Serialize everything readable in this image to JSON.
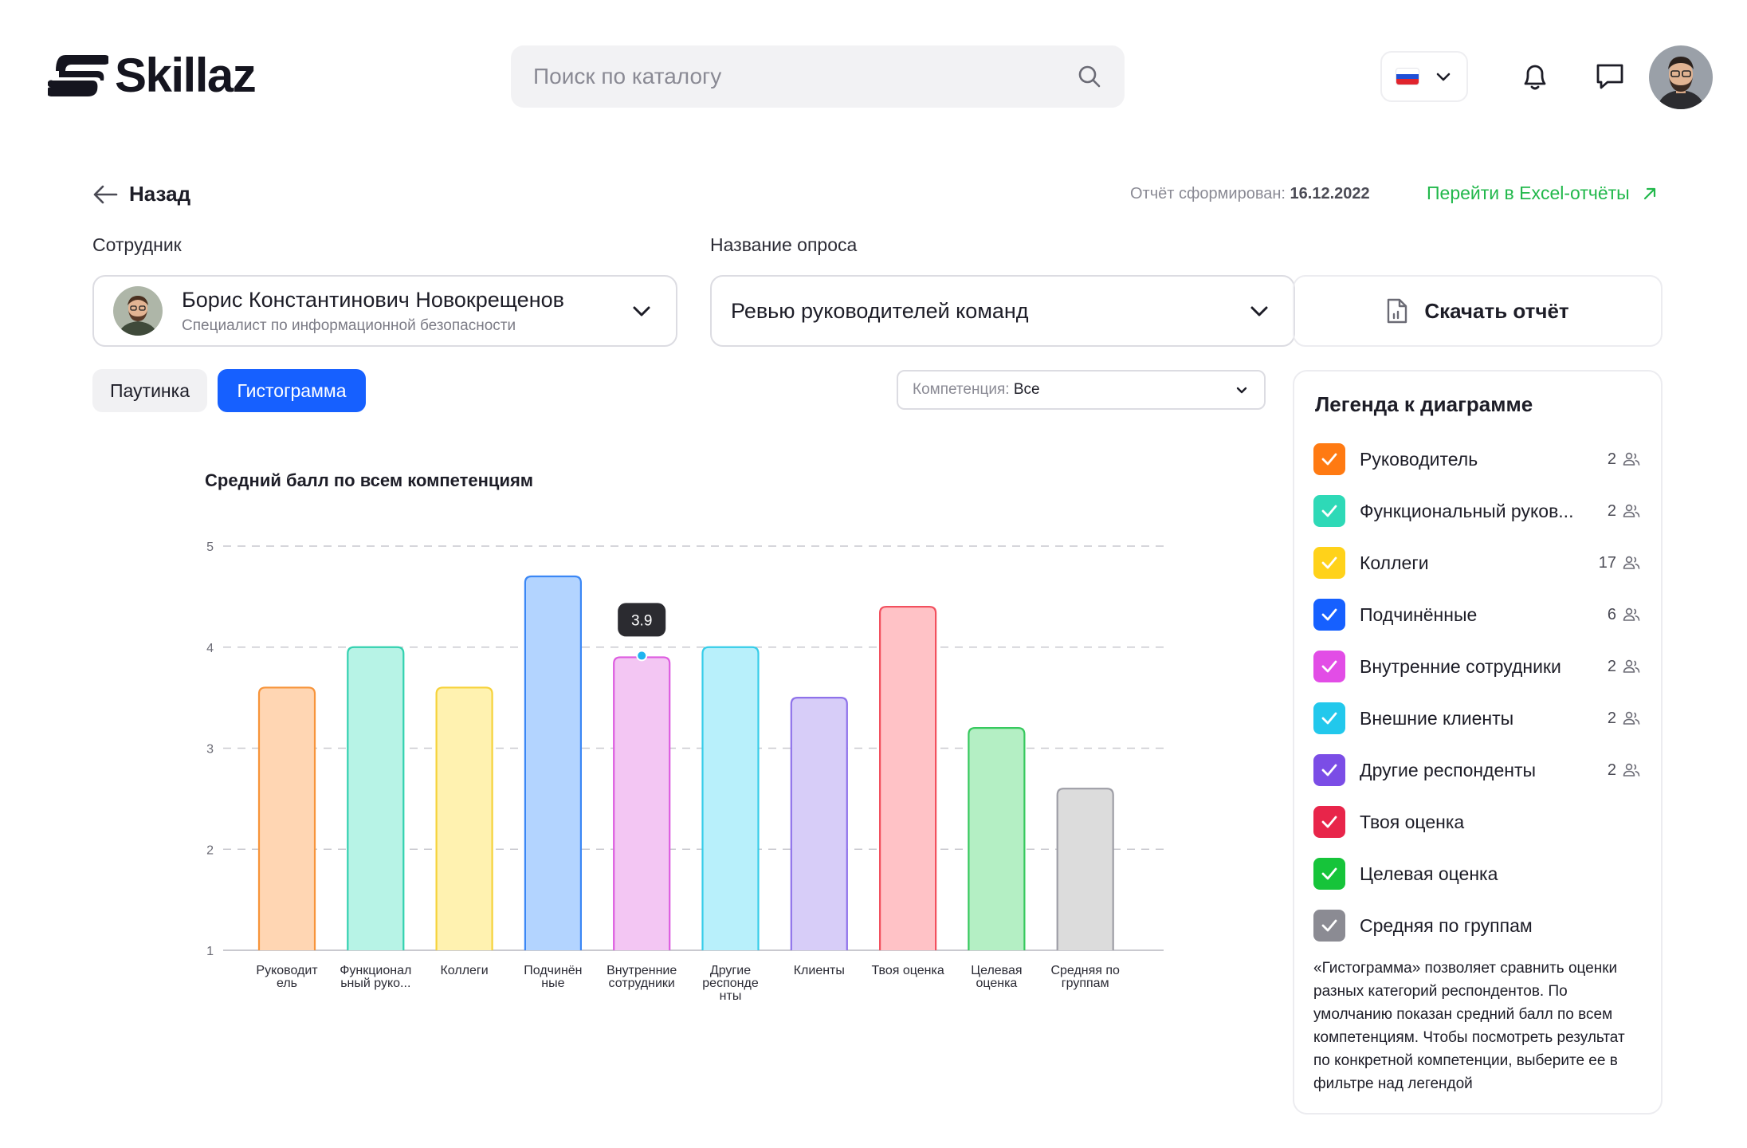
{
  "header": {
    "logo_text": "Skillaz",
    "search_placeholder": "Поиск по каталогу",
    "lang_flag": "ru-flag"
  },
  "toolbar": {
    "back_label": "Назад",
    "report_prefix": "Отчёт сформирован:",
    "report_date": "16.12.2022",
    "excel_link": "Перейти в Excel-отчёты"
  },
  "employee": {
    "label": "Сотрудник",
    "name": "Борис Константинович Новокрещенов",
    "role": "Специалист по информационной безопасности"
  },
  "survey": {
    "label": "Название опроса",
    "value": "Ревью руководителей команд"
  },
  "download_label": "Скачать отчёт",
  "tabs": [
    {
      "label": "Паутинка",
      "active": false
    },
    {
      "label": "Гистограмма",
      "active": true
    }
  ],
  "competency_filter": {
    "prefix": "Компетенция:",
    "value": "Все"
  },
  "chart_data": {
    "type": "bar",
    "title": "Средний балл по всем компетенциям",
    "ylim": [
      1,
      5
    ],
    "yticks": [
      1,
      2,
      3,
      4,
      5
    ],
    "grid": true,
    "categories": [
      [
        "Руководит",
        "ель"
      ],
      [
        "Функционал",
        "ьный руко..."
      ],
      [
        "Коллеги"
      ],
      [
        "Подчинён",
        "ные"
      ],
      [
        "Внутренние",
        "сотрудники"
      ],
      [
        "Другие",
        "респонде",
        "нты"
      ],
      [
        "Клиенты"
      ],
      [
        "Твоя оценка"
      ],
      [
        "Целевая",
        "оценка"
      ],
      [
        "Средняя по",
        "группам"
      ]
    ],
    "values": [
      3.6,
      4.0,
      3.6,
      4.7,
      3.9,
      4.0,
      3.5,
      4.4,
      3.2,
      2.6
    ],
    "fills": [
      "#ffd6b3",
      "#b7f3e6",
      "#fff2b0",
      "#b3d4ff",
      "#f3c6f3",
      "#b8f0fb",
      "#d7cdf8",
      "#ffc2c6",
      "#b4efc4",
      "#dcdcdc"
    ],
    "strokes": [
      "#f7943a",
      "#33d1b0",
      "#f6d23a",
      "#3b87f5",
      "#dd5ce0",
      "#36cde9",
      "#8f72ea",
      "#f2505e",
      "#37c95e",
      "#9e9ea6"
    ],
    "tooltip": {
      "index": 4,
      "label": "3.9"
    }
  },
  "legend": {
    "title": "Легенда к диаграмме",
    "items": [
      {
        "label": "Руководитель",
        "count": "2",
        "color": "#ff7a12"
      },
      {
        "label": "Функциональный руков...",
        "count": "2",
        "color": "#2ed9b7"
      },
      {
        "label": "Коллеги",
        "count": "17",
        "color": "#ffd21a"
      },
      {
        "label": "Подчинённые",
        "count": "6",
        "color": "#1660ff"
      },
      {
        "label": "Внутренние сотрудники",
        "count": "2",
        "color": "#e24de6"
      },
      {
        "label": "Внешние клиенты",
        "count": "2",
        "color": "#22c8ec"
      },
      {
        "label": "Другие респонденты",
        "count": "2",
        "color": "#7b4de6"
      },
      {
        "label": "Твоя оценка",
        "count": "",
        "color": "#e8254a"
      },
      {
        "label": "Целевая оценка",
        "count": "",
        "color": "#16c43a"
      },
      {
        "label": "Средняя по группам",
        "count": "",
        "color": "#8b8b93"
      }
    ],
    "note": "«Гистограмма» позволяет сравнить оценки разных категорий респондентов. По умолчанию показан средний балл по всем компетенциям. Чтобы посмотреть результат по конкретной компетенции, выберите ее в фильтре над легендой"
  }
}
